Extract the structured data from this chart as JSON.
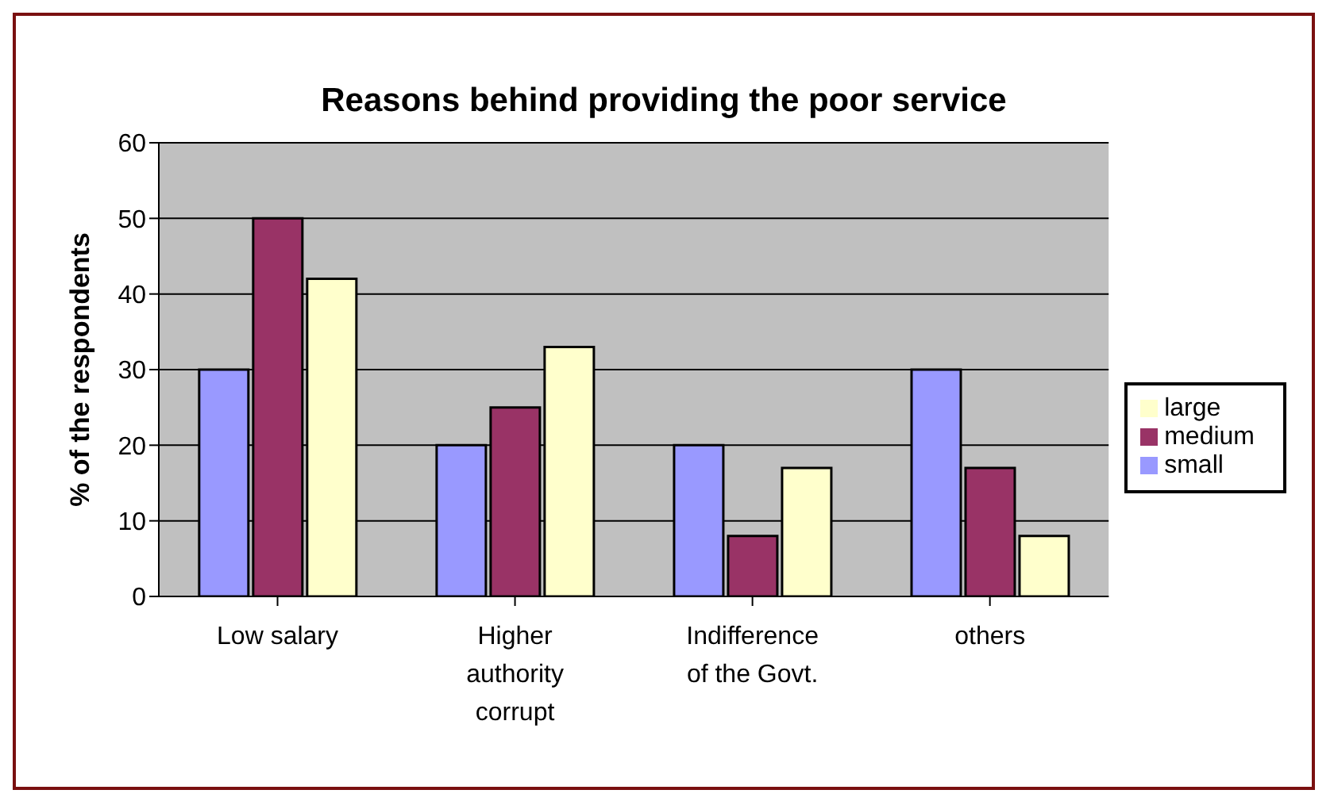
{
  "chart_data": {
    "type": "bar",
    "title": "Reasons behind providing the poor service",
    "ylabel": "% of the respondents",
    "categories": [
      "Low salary",
      "Higher authority corrupt",
      "Indifference of the Govt.",
      "others"
    ],
    "series": [
      {
        "name": "small",
        "color": "#9999ff",
        "values": [
          30,
          20,
          20,
          30
        ]
      },
      {
        "name": "medium",
        "color": "#993366",
        "values": [
          50,
          25,
          8,
          17
        ]
      },
      {
        "name": "large",
        "color": "#ffffcc",
        "values": [
          42,
          33,
          17,
          8
        ]
      }
    ],
    "ylim": [
      0,
      60
    ],
    "yticks": [
      0,
      10,
      20,
      30,
      40,
      50,
      60
    ],
    "grid": "y",
    "legend": "right"
  }
}
